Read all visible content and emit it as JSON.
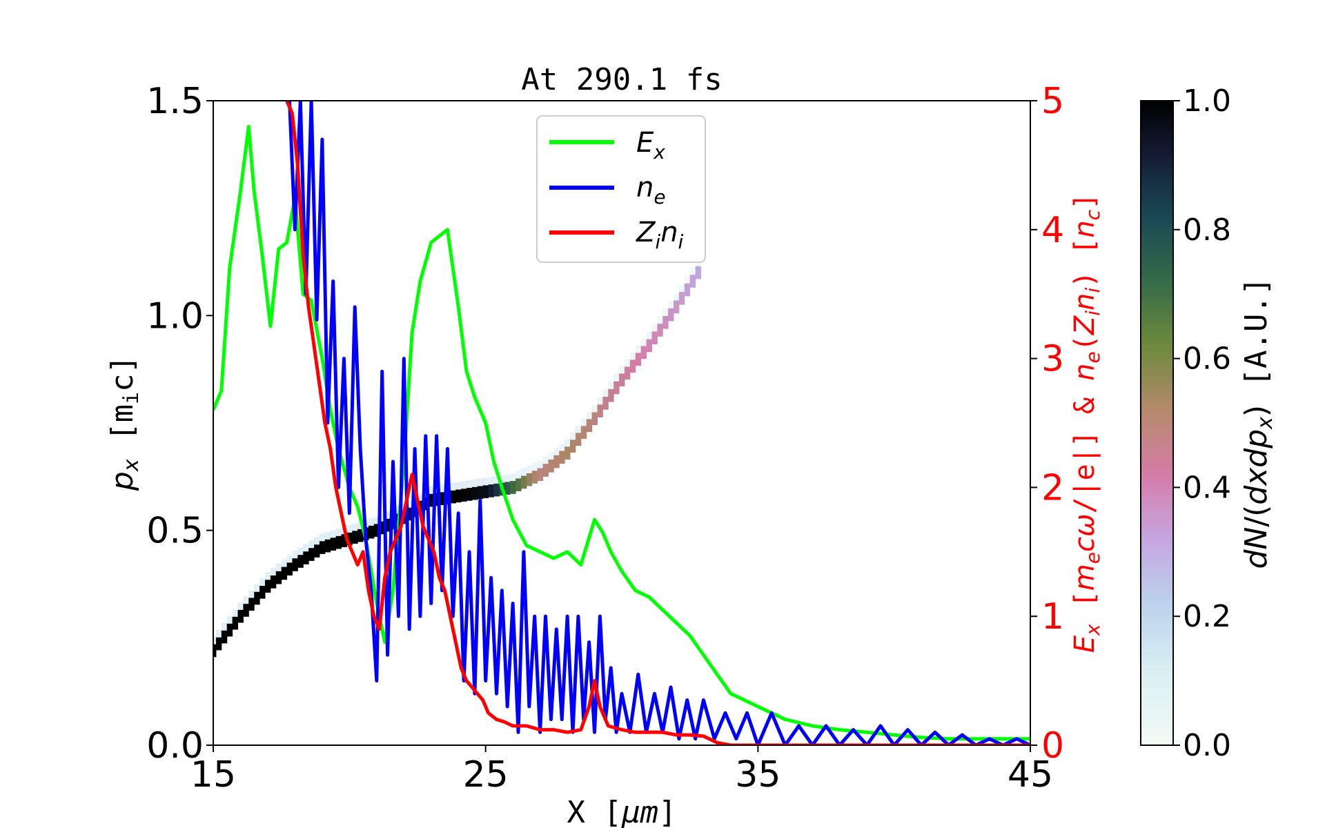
{
  "chart_data": {
    "type": "line",
    "title": "At 290.1 fs",
    "xlabel": "X [μm]",
    "ylabel_left": "p_x [m_i c]",
    "ylabel_right": "E_x [m_e cω/|e|] & n_e(Z_i n_i) [n_c]",
    "colorbar_label": "dN/(dxdp_x) [A.U.]",
    "xlim": [
      15,
      45
    ],
    "ylim_left": [
      0,
      1.5
    ],
    "ylim_right": [
      0,
      5
    ],
    "clim": [
      0,
      1
    ],
    "x_ticks": [
      "15",
      "25",
      "35",
      "45"
    ],
    "y_ticks_left": [
      "0.0",
      "0.5",
      "1.0",
      "1.5"
    ],
    "y_ticks_right": [
      "0",
      "1",
      "2",
      "3",
      "4",
      "5"
    ],
    "colorbar_ticks": [
      "0.0",
      "0.2",
      "0.4",
      "0.6",
      "0.8",
      "1.0"
    ],
    "legend_position": "upper center",
    "colors": {
      "Ex": "#00ff00",
      "ne": "#0000ff",
      "Zini": "#ff0000",
      "right_axis": "#ff0000"
    },
    "series": [
      {
        "name": "E_x",
        "axis": "right",
        "color": "#00ff00",
        "x": [
          15,
          15.3,
          15.6,
          16,
          16.3,
          16.5,
          16.8,
          17.1,
          17.4,
          17.7,
          18,
          18.3,
          18.6,
          19,
          19.3,
          19.6,
          20,
          20.3,
          20.6,
          21,
          21.3,
          21.6,
          22,
          22.3,
          22.6,
          23,
          23.3,
          23.6,
          24,
          24.3,
          24.6,
          25,
          25.3,
          25.6,
          26,
          26.5,
          27,
          27.5,
          28,
          28.5,
          29,
          29.3,
          29.6,
          30,
          30.5,
          31,
          31.5,
          32,
          32.5,
          33,
          33.5,
          34,
          34.5,
          35,
          35.5,
          36,
          37,
          38,
          39,
          40,
          41,
          42,
          43,
          44,
          45
        ],
        "y": [
          2.6,
          2.75,
          3.7,
          4.3,
          4.8,
          4.3,
          3.8,
          3.25,
          3.85,
          3.9,
          4.25,
          3.5,
          3.45,
          3.0,
          2.6,
          2.3,
          2.0,
          1.85,
          1.6,
          1.1,
          0.8,
          1.2,
          2.2,
          3.2,
          3.6,
          3.9,
          3.95,
          4.0,
          3.4,
          2.9,
          2.7,
          2.5,
          2.2,
          2.0,
          1.75,
          1.55,
          1.5,
          1.45,
          1.5,
          1.4,
          1.75,
          1.65,
          1.5,
          1.35,
          1.2,
          1.15,
          1.05,
          0.95,
          0.85,
          0.7,
          0.55,
          0.4,
          0.35,
          0.3,
          0.25,
          0.2,
          0.15,
          0.12,
          0.1,
          0.08,
          0.06,
          0.05,
          0.05,
          0.05,
          0.05
        ]
      },
      {
        "name": "n_e",
        "axis": "right",
        "color": "#0000ff",
        "x": [
          17.8,
          18.0,
          18.2,
          18.4,
          18.6,
          18.8,
          19.0,
          19.2,
          19.4,
          19.6,
          19.8,
          20.0,
          20.2,
          20.4,
          20.6,
          20.8,
          21.0,
          21.2,
          21.4,
          21.6,
          21.8,
          22.0,
          22.2,
          22.4,
          22.6,
          22.8,
          23.0,
          23.2,
          23.4,
          23.6,
          23.8,
          24.0,
          24.2,
          24.4,
          24.6,
          24.8,
          25.0,
          25.2,
          25.4,
          25.6,
          25.8,
          26.0,
          26.2,
          26.4,
          26.6,
          26.8,
          27.0,
          27.2,
          27.4,
          27.6,
          27.8,
          28.0,
          28.2,
          28.4,
          28.6,
          28.8,
          29.0,
          29.2,
          29.4,
          29.6,
          29.8,
          30.0,
          30.3,
          30.6,
          30.9,
          31.2,
          31.5,
          31.8,
          32.1,
          32.4,
          32.7,
          33.0,
          33.4,
          33.8,
          34.2,
          34.6,
          35.0,
          35.5,
          36.0,
          36.5,
          37.0,
          37.5,
          38.0,
          38.5,
          39.0,
          39.5,
          40.0,
          40.5,
          41.0,
          41.5,
          42.0,
          42.5,
          43.0,
          43.5,
          44.0,
          44.5,
          45.0
        ],
        "y": [
          5.0,
          4.0,
          5.0,
          3.5,
          5.0,
          3.3,
          4.7,
          2.5,
          3.6,
          2.0,
          3.0,
          1.8,
          3.4,
          2.3,
          1.6,
          1.2,
          0.5,
          2.9,
          0.7,
          2.2,
          1.0,
          3.0,
          0.9,
          2.3,
          1.0,
          2.4,
          1.1,
          2.4,
          1.2,
          2.3,
          1.0,
          1.8,
          0.5,
          1.5,
          0.4,
          1.9,
          0.5,
          1.3,
          0.4,
          1.2,
          0.3,
          1.1,
          0.1,
          1.5,
          0.3,
          1.0,
          0.1,
          1.0,
          0.2,
          0.9,
          0.2,
          1.0,
          0.1,
          1.0,
          0.2,
          0.8,
          0.1,
          1.0,
          0.2,
          0.6,
          0.1,
          0.4,
          0.1,
          0.55,
          0.1,
          0.4,
          0.1,
          0.45,
          0.05,
          0.35,
          0.05,
          0.35,
          0.05,
          0.25,
          0.05,
          0.25,
          0.0,
          0.25,
          0.0,
          0.15,
          0.0,
          0.15,
          0.0,
          0.12,
          0.0,
          0.15,
          0.0,
          0.12,
          0.0,
          0.1,
          0.0,
          0.08,
          0.0,
          0.05,
          0.0,
          0.05,
          0.0
        ]
      },
      {
        "name": "Z_i n_i",
        "axis": "right",
        "color": "#ff0000",
        "x": [
          17.7,
          17.9,
          18.1,
          18.3,
          18.5,
          18.7,
          18.9,
          19.1,
          19.3,
          19.5,
          19.7,
          19.9,
          20.1,
          20.3,
          20.5,
          20.7,
          20.9,
          21.1,
          21.3,
          21.5,
          21.7,
          21.9,
          22.1,
          22.3,
          22.5,
          22.7,
          22.9,
          23.1,
          23.3,
          23.5,
          23.7,
          23.9,
          24.1,
          24.3,
          24.5,
          24.7,
          24.9,
          25.1,
          25.4,
          25.7,
          26,
          26.5,
          27,
          27.5,
          28,
          28.5,
          28.8,
          29.0,
          29.2,
          29.5,
          30,
          30.5,
          31,
          31.5,
          32,
          32.5,
          33,
          33.5,
          34,
          35,
          36,
          37,
          38,
          39,
          40,
          41,
          42,
          43,
          44,
          45
        ],
        "y": [
          5.0,
          4.9,
          4.5,
          3.8,
          3.4,
          3.1,
          2.8,
          2.5,
          2.3,
          2.0,
          1.8,
          1.6,
          1.5,
          1.4,
          1.5,
          1.2,
          1.0,
          0.9,
          1.3,
          1.5,
          1.6,
          1.7,
          1.9,
          2.1,
          1.9,
          1.7,
          1.6,
          1.5,
          1.3,
          1.2,
          1.0,
          0.8,
          0.6,
          0.5,
          0.45,
          0.4,
          0.35,
          0.25,
          0.2,
          0.18,
          0.15,
          0.15,
          0.12,
          0.12,
          0.1,
          0.12,
          0.3,
          0.5,
          0.3,
          0.15,
          0.12,
          0.1,
          0.1,
          0.1,
          0.08,
          0.08,
          0.07,
          0.02,
          0.0,
          0.0,
          0.0,
          0.0,
          0.0,
          0.0,
          0.0,
          0.0,
          0.0,
          0.0,
          0.0,
          0.0
        ]
      },
      {
        "name": "",
        "type": "heatmap-track",
        "axis": "left",
        "description_of_color": "intensity dN/(dxdp_x) along ion phase-space curve",
        "x": [
          15,
          16,
          17,
          18,
          19,
          20,
          21,
          22,
          23,
          24,
          25,
          26,
          27,
          28,
          29,
          30,
          31,
          32,
          33
        ],
        "y": [
          0.22,
          0.3,
          0.37,
          0.42,
          0.46,
          0.48,
          0.5,
          0.53,
          0.57,
          0.58,
          0.59,
          0.6,
          0.63,
          0.68,
          0.76,
          0.85,
          0.93,
          1.02,
          1.12
        ],
        "intensity": [
          1,
          1,
          1,
          1,
          1,
          1,
          1,
          0.9,
          1,
          1,
          0.95,
          0.7,
          0.5,
          0.55,
          0.5,
          0.45,
          0.4,
          0.35,
          0.3
        ]
      }
    ]
  }
}
